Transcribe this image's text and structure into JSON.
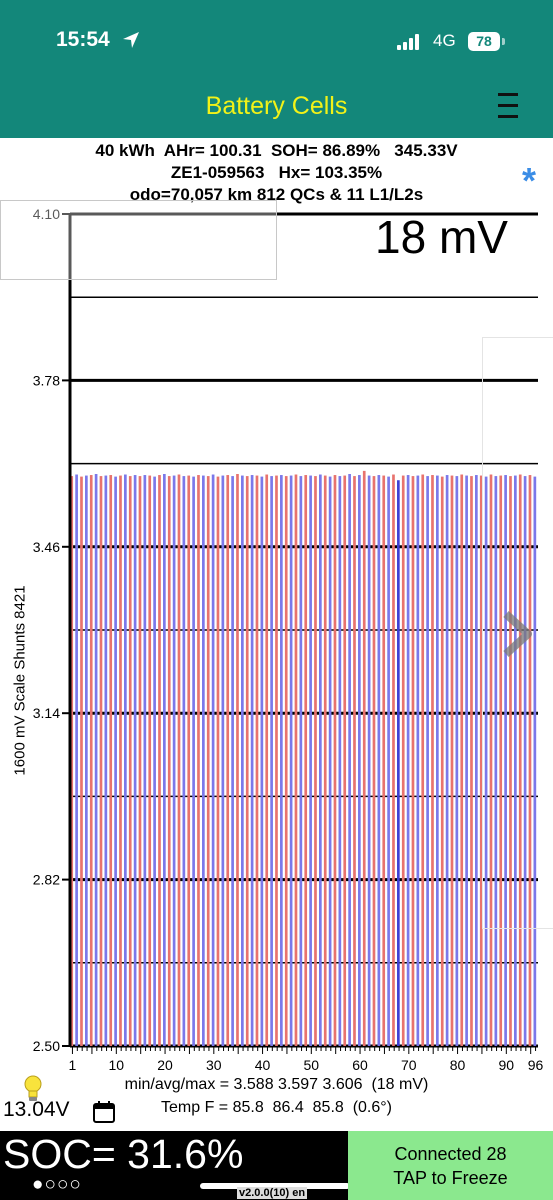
{
  "status_bar": {
    "time": "15:54",
    "network": "4G",
    "battery": "78"
  },
  "nav": {
    "title": "Battery Cells"
  },
  "summary": {
    "line1": "40 kWh  AHr= 100.31  SOH= 86.89%   345.33V",
    "line2": "ZE1-059563   Hx= 103.35%",
    "line3": "odo=70,057 km 812 QCs & 11 L1/L2s"
  },
  "spread_readout": "18 mV",
  "chart_data": {
    "type": "bar",
    "ylabel": "1600 mV Scale   Shunts 8421",
    "ylim": [
      2.5,
      4.1
    ],
    "y_ticks": [
      "4.10",
      "3.78",
      "3.46",
      "3.14",
      "2.82",
      "2.50"
    ],
    "x_ticks": [
      "1",
      "10",
      "20",
      "30",
      "40",
      "50",
      "60",
      "70",
      "80",
      "90",
      "96"
    ],
    "cell_count": 96,
    "series_colors": [
      "#e8736e",
      "#7b78ea"
    ],
    "highlight_color": "#3f3fd4",
    "values": [
      3.596,
      3.599,
      3.595,
      3.597,
      3.598,
      3.6,
      3.596,
      3.597,
      3.598,
      3.595,
      3.597,
      3.599,
      3.596,
      3.598,
      3.596,
      3.598,
      3.597,
      3.595,
      3.598,
      3.6,
      3.596,
      3.597,
      3.599,
      3.596,
      3.597,
      3.595,
      3.598,
      3.597,
      3.596,
      3.599,
      3.595,
      3.597,
      3.598,
      3.596,
      3.6,
      3.597,
      3.596,
      3.598,
      3.597,
      3.595,
      3.599,
      3.596,
      3.597,
      3.598,
      3.596,
      3.597,
      3.599,
      3.596,
      3.598,
      3.597,
      3.596,
      3.599,
      3.597,
      3.595,
      3.598,
      3.596,
      3.597,
      3.6,
      3.596,
      3.598,
      3.606,
      3.597,
      3.596,
      3.598,
      3.597,
      3.595,
      3.599,
      3.588,
      3.597,
      3.598,
      3.596,
      3.597,
      3.599,
      3.596,
      3.598,
      3.597,
      3.595,
      3.598,
      3.597,
      3.596,
      3.599,
      3.597,
      3.596,
      3.598,
      3.597,
      3.595,
      3.599,
      3.596,
      3.597,
      3.598,
      3.596,
      3.597,
      3.599,
      3.596,
      3.598,
      3.595
    ]
  },
  "stats": {
    "voltage_line": "min/avg/max = 3.588 3.597 3.606  (18 mV)",
    "temp_line": "Temp F = 85.8  86.4  85.8  (0.6°)"
  },
  "aux_voltage": "13.04V",
  "soc": "SOC= 31.6%",
  "page_dots": "●○○○",
  "version": "v2.0.0(10) en",
  "connect_button": {
    "line1": "Connected 28",
    "line2": "TAP to Freeze"
  },
  "icons": [
    "location-arrow-icon",
    "signal-icon",
    "menu-icon",
    "star-icon",
    "chevron-right-icon",
    "bulb-icon",
    "calendar-icon"
  ]
}
